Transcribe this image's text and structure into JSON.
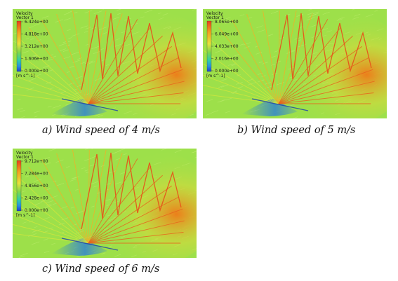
{
  "figures": [
    {
      "legend": {
        "title": [
          "Velocity",
          "Vector 1"
        ],
        "ticks": [
          "6.424e+00",
          "4.818e+00",
          "3.212e+00",
          "1.606e+00",
          "0.000e+00"
        ],
        "unit": "[m s^-1]"
      },
      "caption": "a) Wind speed of 4 m/s"
    },
    {
      "legend": {
        "title": [
          "Velocity",
          "Vector 1"
        ],
        "ticks": [
          "8.065e+00",
          "6.049e+00",
          "4.033e+00",
          "2.016e+00",
          "0.000e+00"
        ],
        "unit": "[m s^-1]"
      },
      "caption": "b) Wind speed of 5 m/s"
    },
    {
      "legend": {
        "title": [
          "Velocity",
          "Vector 1"
        ],
        "ticks": [
          "9.712e+00",
          "7.284e+00",
          "4.856e+00",
          "2.428e+00",
          "0.000e+00"
        ],
        "unit": "[m s^-1]"
      },
      "caption": "c) Wind speed of 6 m/s"
    }
  ],
  "colors": {
    "field_background": "#9de04a",
    "high_velocity": "#f07a18",
    "peak_velocity": "#e8501a",
    "low_velocity": "#2b7fd8",
    "mid_velocity": "#d9d83a"
  }
}
